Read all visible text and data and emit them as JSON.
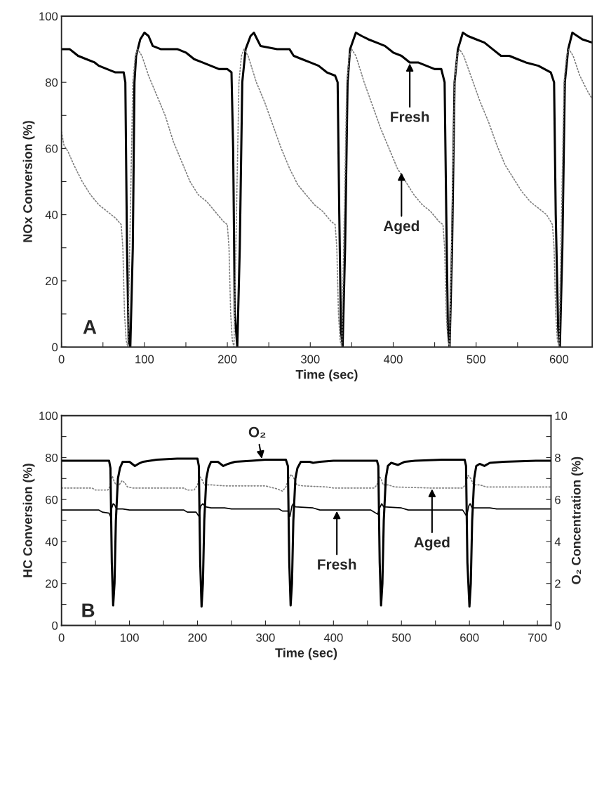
{
  "chart_data": [
    {
      "type": "line",
      "xlabel": "Time (sec)",
      "ylabel": "NOx Conversion (%)",
      "xlim": [
        0,
        640
      ],
      "ylim": [
        0,
        100
      ],
      "xticks": [
        0,
        {
          "value": 50,
          "label": null
        },
        100,
        {
          "value": 150,
          "label": null
        },
        200,
        {
          "value": 250,
          "label": null
        },
        300,
        {
          "value": 350,
          "label": null
        },
        400,
        {
          "value": 450,
          "label": null
        },
        500,
        {
          "value": 550,
          "label": null
        },
        600
      ],
      "yticks": [
        0,
        {
          "value": 10,
          "label": null
        },
        20,
        {
          "value": 30,
          "label": null
        },
        40,
        {
          "value": 50,
          "label": null
        },
        60,
        {
          "value": 70,
          "label": null
        },
        80,
        {
          "value": 90,
          "label": null
        },
        100
      ],
      "grid": false,
      "series": [
        {
          "color": "#000000",
          "line_style": "solid",
          "x": [
            0,
            10,
            15,
            20,
            30,
            40,
            45,
            55,
            65,
            75,
            77,
            79,
            81,
            83,
            86,
            88,
            90,
            95,
            100,
            105,
            110,
            120,
            140,
            150,
            160,
            170,
            180,
            190,
            200,
            205,
            207,
            209,
            212,
            215,
            218,
            222,
            228,
            232,
            236,
            240,
            260,
            275,
            280,
            290,
            300,
            310,
            320,
            330,
            333,
            335,
            337,
            339,
            342,
            345,
            348,
            355,
            362,
            370,
            380,
            390,
            400,
            410,
            420,
            430,
            440,
            450,
            458,
            462,
            464,
            466,
            468,
            471,
            474,
            478,
            484,
            490,
            500,
            510,
            520,
            530,
            540,
            550,
            560,
            575,
            590,
            594,
            596,
            599,
            601,
            604,
            607,
            611,
            616,
            622,
            628,
            640
          ],
          "values": [
            90,
            90,
            89,
            88,
            87,
            86,
            85,
            84,
            83,
            83,
            80,
            30,
            2,
            0,
            30,
            80,
            88,
            93,
            95,
            94,
            91,
            90,
            90,
            89,
            87,
            86,
            85,
            84,
            84,
            83,
            60,
            10,
            0,
            30,
            80,
            90,
            94,
            95,
            93,
            91,
            90,
            90,
            88,
            87,
            86,
            85,
            83,
            82,
            80,
            40,
            5,
            0,
            30,
            80,
            90,
            95,
            94,
            93,
            92,
            91,
            89,
            88,
            86,
            86,
            85,
            84,
            84,
            80,
            40,
            5,
            0,
            30,
            80,
            90,
            95,
            94,
            93,
            92,
            90,
            88,
            88,
            87,
            86,
            85,
            83,
            80,
            40,
            5,
            0,
            30,
            80,
            90,
            95,
            94,
            93,
            92
          ]
        },
        {
          "color": "#808080",
          "line_style": "dotted",
          "x": [
            0,
            3,
            8,
            15,
            25,
            35,
            45,
            55,
            65,
            72,
            74,
            76,
            78,
            80,
            83,
            86,
            89,
            92,
            97,
            105,
            115,
            125,
            135,
            145,
            155,
            165,
            175,
            185,
            195,
            200,
            202,
            204,
            206,
            208,
            211,
            214,
            217,
            220,
            225,
            235,
            245,
            255,
            265,
            275,
            285,
            295,
            305,
            315,
            325,
            330,
            332,
            334,
            336,
            338,
            341,
            344,
            347,
            350,
            355,
            365,
            375,
            385,
            395,
            405,
            415,
            425,
            435,
            445,
            455,
            460,
            462,
            464,
            466,
            468,
            471,
            474,
            477,
            480,
            485,
            495,
            505,
            515,
            525,
            535,
            545,
            555,
            565,
            575,
            585,
            592,
            594,
            596,
            598,
            600,
            603,
            606,
            609,
            612,
            617,
            625,
            635,
            640
          ],
          "values": [
            65,
            61,
            59,
            55,
            50,
            46,
            43,
            41,
            39,
            37,
            30,
            10,
            2,
            0,
            40,
            80,
            88,
            90,
            88,
            82,
            76,
            70,
            62,
            56,
            50,
            46,
            44,
            41,
            38,
            37,
            30,
            10,
            2,
            0,
            40,
            80,
            88,
            90,
            88,
            80,
            74,
            67,
            60,
            54,
            49,
            46,
            43,
            41,
            38,
            37,
            30,
            10,
            2,
            0,
            40,
            80,
            88,
            90,
            88,
            80,
            73,
            66,
            60,
            54,
            50,
            46,
            43,
            41,
            38,
            37,
            30,
            10,
            2,
            0,
            40,
            80,
            88,
            90,
            88,
            81,
            74,
            68,
            61,
            55,
            51,
            47,
            44,
            42,
            40,
            37,
            30,
            10,
            2,
            0,
            40,
            80,
            88,
            90,
            88,
            82,
            77,
            75
          ]
        }
      ],
      "annotations": [
        "A",
        {
          "text": "Fresh",
          "x": 420,
          "y": 86
        },
        {
          "text": "Aged",
          "x": 410,
          "y": 53
        }
      ]
    },
    {
      "type": "line",
      "xlabel": "Time (sec)",
      "ylabel": "HC Conversion (%)",
      "y2label": "O₂ Concentration (%)",
      "xlim": [
        0,
        720
      ],
      "ylim": [
        0,
        100
      ],
      "y2lim": [
        0,
        10
      ],
      "xticks": [
        0,
        {
          "value": 50,
          "label": null
        },
        100,
        {
          "value": 150,
          "label": null
        },
        200,
        {
          "value": 250,
          "label": null
        },
        300,
        {
          "value": 350,
          "label": null
        },
        400,
        {
          "value": 450,
          "label": null
        },
        500,
        {
          "value": 550,
          "label": null
        },
        600,
        {
          "value": 650,
          "label": null
        },
        700
      ],
      "yticks": [
        0,
        {
          "value": 10,
          "label": null
        },
        20,
        {
          "value": 30,
          "label": null
        },
        40,
        {
          "value": 50,
          "label": null
        },
        60,
        {
          "value": 70,
          "label": null
        },
        80,
        {
          "value": 90,
          "label": null
        },
        100
      ],
      "y2ticks": [
        0,
        {
          "value": 1,
          "label": null
        },
        2,
        {
          "value": 3,
          "label": null
        },
        4,
        {
          "value": 5,
          "label": null
        },
        6,
        {
          "value": 7,
          "label": null
        },
        8,
        {
          "value": 9,
          "label": null
        },
        10
      ],
      "grid": false,
      "series": [
        {
          "color": "#000000",
          "line_style": "solid",
          "x": [
            0,
            55,
            60,
            70,
            72,
            74,
            76,
            78,
            81,
            90,
            100,
            180,
            185,
            198,
            202,
            205,
            208,
            212,
            220,
            240,
            250,
            320,
            325,
            333,
            336,
            339,
            341,
            344,
            370,
            380,
            455,
            465,
            468,
            471,
            474,
            500,
            510,
            590,
            596,
            599,
            601,
            604,
            630,
            640,
            720
          ],
          "values": [
            55,
            55,
            54,
            53.5,
            52,
            56,
            58,
            57.5,
            55.5,
            55.5,
            55,
            55,
            54,
            54,
            52,
            57,
            58,
            56.5,
            56,
            56,
            55.5,
            55.5,
            54.5,
            54.5,
            52,
            57,
            58,
            56.5,
            56,
            55,
            55,
            53,
            56,
            58,
            56.5,
            56,
            55,
            55,
            52,
            57,
            58,
            56,
            56,
            55.5,
            55.5
          ]
        },
        {
          "color": "#808080",
          "line_style": "dotted",
          "x": [
            0,
            45,
            50,
            68,
            71,
            73,
            75,
            77,
            80,
            85,
            89,
            93,
            97,
            105,
            180,
            185,
            195,
            200,
            203,
            206,
            210,
            220,
            240,
            300,
            318,
            325,
            330,
            334,
            338,
            342,
            346,
            355,
            390,
            400,
            460,
            464,
            467,
            470,
            473,
            480,
            490,
            540,
            590,
            594,
            598,
            602,
            606,
            615,
            625,
            720
          ],
          "values": [
            65.5,
            65.5,
            64.5,
            64.5,
            66,
            70,
            71,
            69,
            67,
            67,
            69,
            68,
            66,
            65.5,
            65.5,
            64.5,
            64.5,
            67,
            71,
            70,
            67,
            67,
            66.5,
            66.5,
            65,
            64,
            66,
            70,
            72,
            70,
            67,
            66.5,
            66,
            65.5,
            65.5,
            67,
            71,
            70,
            67,
            67,
            66,
            65.5,
            65.5,
            67,
            71.5,
            70,
            67,
            67,
            66,
            66
          ]
        },
        {
          "color": "#000000",
          "line_style": "solid",
          "axis": "y2",
          "x": [
            0,
            30,
            60,
            70,
            72,
            74,
            76,
            78,
            80,
            83,
            86,
            90,
            100,
            108,
            113,
            120,
            140,
            170,
            200,
            202,
            204,
            206,
            208,
            210,
            213,
            216,
            220,
            230,
            238,
            245,
            255,
            280,
            300,
            330,
            333,
            335,
            337,
            339,
            341,
            344,
            347,
            352,
            365,
            370,
            380,
            400,
            440,
            464,
            466,
            468,
            470,
            472,
            474,
            477,
            480,
            485,
            495,
            505,
            520,
            560,
            593,
            595,
            597,
            600,
            602,
            604,
            607,
            610,
            615,
            622,
            630,
            650,
            700,
            720
          ],
          "values": [
            7.85,
            7.85,
            7.85,
            7.85,
            7.5,
            3,
            0.95,
            2,
            5,
            7,
            7.5,
            7.8,
            7.8,
            7.6,
            7.7,
            7.8,
            7.9,
            7.95,
            7.95,
            7.6,
            3,
            0.9,
            2,
            5,
            7,
            7.5,
            7.8,
            7.8,
            7.6,
            7.7,
            7.8,
            7.85,
            7.9,
            7.9,
            7.6,
            3,
            0.95,
            2,
            5,
            7,
            7.5,
            7.8,
            7.8,
            7.75,
            7.8,
            7.85,
            7.85,
            7.85,
            7.6,
            3,
            0.95,
            2,
            5,
            7,
            7.6,
            7.75,
            7.65,
            7.8,
            7.85,
            7.9,
            7.9,
            7.6,
            3,
            0.9,
            2,
            5,
            7,
            7.6,
            7.7,
            7.6,
            7.75,
            7.8,
            7.85,
            7.85
          ]
        }
      ],
      "annotations": [
        "B",
        {
          "text": "O₂",
          "x": 295,
          "y": 79
        },
        {
          "text": "Fresh",
          "x": 405,
          "y": 55
        },
        {
          "text": "Aged",
          "x": 545,
          "y": 65.5
        }
      ]
    }
  ]
}
